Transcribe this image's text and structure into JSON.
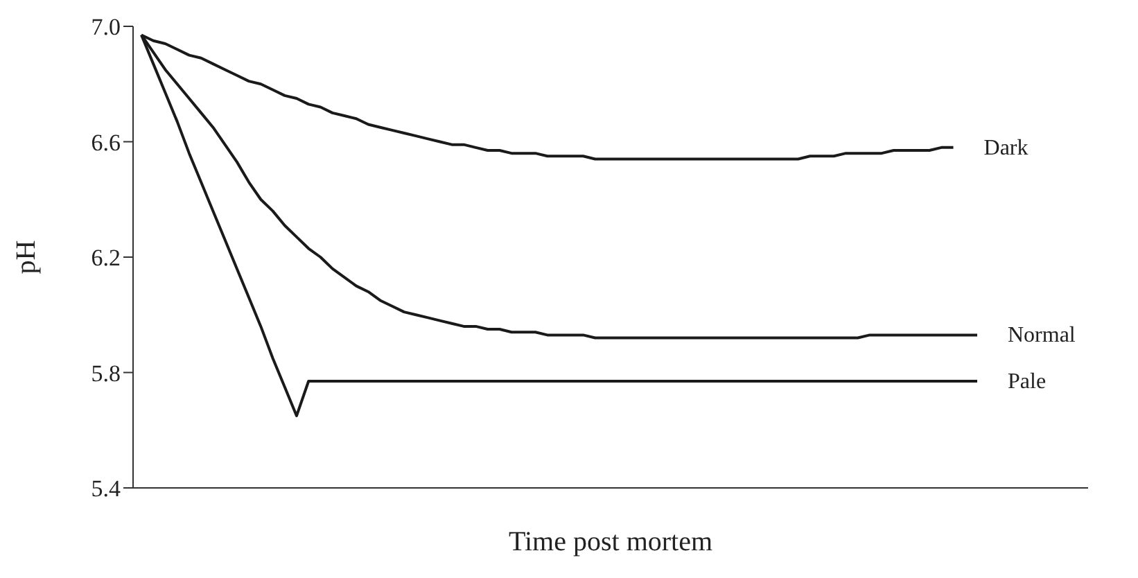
{
  "chart_data": {
    "type": "line",
    "xlabel": "Time post mortem",
    "ylabel": "pH",
    "tick_labels": "y",
    "grid": false,
    "legend": false,
    "marker": "none",
    "line_style": "solid",
    "categories": [
      null,
      null,
      null,
      null,
      null,
      null,
      null,
      null,
      null,
      null,
      null,
      null,
      null,
      null,
      null,
      null,
      null,
      null,
      null,
      null,
      null,
      null,
      null,
      null,
      null,
      null,
      null,
      null,
      null,
      null,
      null,
      null,
      null,
      null,
      null,
      null,
      null,
      null,
      null,
      null,
      null,
      null,
      null,
      null,
      null,
      null,
      null,
      null,
      null,
      null,
      null,
      null,
      null,
      null,
      null,
      null,
      null,
      null,
      null,
      null,
      null,
      null,
      null,
      null,
      null,
      null,
      null,
      null,
      null,
      null,
      null
    ],
    "ylim": [
      5.4,
      7.0
    ],
    "yticks": [
      {
        "value": 5.4,
        "label": "5.4"
      },
      {
        "value": 5.8,
        "label": "5.8"
      },
      {
        "value": 6.2,
        "label": "6.2"
      },
      {
        "value": 6.6,
        "label": "6.6"
      },
      {
        "value": 7.0,
        "label": "7.0"
      }
    ],
    "series": [
      {
        "name": "Dark",
        "color": "#1a1a1a",
        "values": [
          6.97,
          6.95,
          6.94,
          6.92,
          6.9,
          6.89,
          6.87,
          6.85,
          6.83,
          6.81,
          6.8,
          6.78,
          6.76,
          6.75,
          6.73,
          6.72,
          6.7,
          6.69,
          6.68,
          6.66,
          6.65,
          6.64,
          6.63,
          6.62,
          6.61,
          6.6,
          6.59,
          6.59,
          6.58,
          6.57,
          6.57,
          6.56,
          6.56,
          6.56,
          6.55,
          6.55,
          6.55,
          6.55,
          6.54,
          6.54,
          6.54,
          6.54,
          6.54,
          6.54,
          6.54,
          6.54,
          6.54,
          6.54,
          6.54,
          6.54,
          6.54,
          6.54,
          6.54,
          6.54,
          6.54,
          6.54,
          6.55,
          6.55,
          6.55,
          6.56,
          6.56,
          6.56,
          6.56,
          6.57,
          6.57,
          6.57,
          6.57,
          6.58,
          6.58,
          null,
          null
        ]
      },
      {
        "name": "Normal",
        "color": "#1a1a1a",
        "values": [
          6.97,
          6.91,
          6.85,
          6.8,
          6.75,
          6.7,
          6.65,
          6.59,
          6.53,
          6.46,
          6.4,
          6.36,
          6.31,
          6.27,
          6.23,
          6.2,
          6.16,
          6.13,
          6.1,
          6.08,
          6.05,
          6.03,
          6.01,
          6.0,
          5.99,
          5.98,
          5.97,
          5.96,
          5.96,
          5.95,
          5.95,
          5.94,
          5.94,
          5.94,
          5.93,
          5.93,
          5.93,
          5.93,
          5.92,
          5.92,
          5.92,
          5.92,
          5.92,
          5.92,
          5.92,
          5.92,
          5.92,
          5.92,
          5.92,
          5.92,
          5.92,
          5.92,
          5.92,
          5.92,
          5.92,
          5.92,
          5.92,
          5.92,
          5.92,
          5.92,
          5.92,
          5.93,
          5.93,
          5.93,
          5.93,
          5.93,
          5.93,
          5.93,
          5.93,
          5.93,
          5.93
        ]
      },
      {
        "name": "Pale",
        "color": "#1a1a1a",
        "values": [
          6.97,
          6.87,
          6.77,
          6.67,
          6.56,
          6.46,
          6.36,
          6.26,
          6.16,
          6.06,
          5.96,
          5.85,
          5.75,
          5.65,
          5.77,
          5.77,
          5.77,
          5.77,
          5.77,
          5.77,
          5.77,
          5.77,
          5.77,
          5.77,
          5.77,
          5.77,
          5.77,
          5.77,
          5.77,
          5.77,
          5.77,
          5.77,
          5.77,
          5.77,
          5.77,
          5.77,
          5.77,
          5.77,
          5.77,
          5.77,
          5.77,
          5.77,
          5.77,
          5.77,
          5.77,
          5.77,
          5.77,
          5.77,
          5.77,
          5.77,
          5.77,
          5.77,
          5.77,
          5.77,
          5.77,
          5.77,
          5.77,
          5.77,
          5.77,
          5.77,
          5.77,
          5.77,
          5.77,
          5.77,
          5.77,
          5.77,
          5.77,
          5.77,
          5.77,
          5.77,
          5.77
        ]
      }
    ]
  }
}
